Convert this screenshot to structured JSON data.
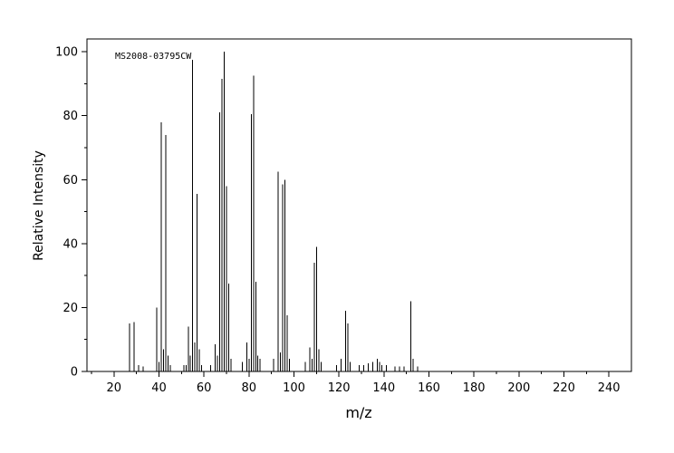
{
  "colors": {
    "background": "#ffffff",
    "axis": "#000000",
    "peak": "#000000",
    "text": "#000000"
  },
  "chart_data": {
    "type": "bar",
    "subtype": "mass-spectrum-stick-plot",
    "title": "",
    "annotation": "MS2008-03795CW",
    "xlabel": "m/z",
    "ylabel": "Relative Intensity",
    "xlim": [
      8,
      250
    ],
    "ylim": [
      0,
      104
    ],
    "x_major_ticks": [
      20,
      40,
      60,
      80,
      100,
      120,
      140,
      160,
      180,
      200,
      220,
      240
    ],
    "x_minor_step": 10,
    "y_major_ticks": [
      0,
      20,
      40,
      60,
      80,
      100
    ],
    "y_minor_step": 10,
    "grid": false,
    "legend": "none",
    "peaks": [
      [
        27,
        15
      ],
      [
        29,
        15.5
      ],
      [
        31,
        2
      ],
      [
        33,
        1.5
      ],
      [
        39,
        20
      ],
      [
        40,
        3
      ],
      [
        41,
        78
      ],
      [
        42,
        7
      ],
      [
        43,
        74
      ],
      [
        44,
        5
      ],
      [
        45,
        2
      ],
      [
        51,
        2
      ],
      [
        52,
        2
      ],
      [
        53,
        14
      ],
      [
        54,
        5
      ],
      [
        55,
        97.5
      ],
      [
        56,
        9
      ],
      [
        57,
        55.5
      ],
      [
        58,
        7
      ],
      [
        59,
        2
      ],
      [
        63,
        2
      ],
      [
        65,
        8.5
      ],
      [
        66,
        5
      ],
      [
        67,
        81
      ],
      [
        68,
        91.5
      ],
      [
        69,
        100
      ],
      [
        70,
        58
      ],
      [
        71,
        27.5
      ],
      [
        72,
        4
      ],
      [
        77,
        3
      ],
      [
        79,
        9
      ],
      [
        80,
        4
      ],
      [
        81,
        80.5
      ],
      [
        82,
        92.5
      ],
      [
        83,
        28
      ],
      [
        84,
        5
      ],
      [
        85,
        4
      ],
      [
        91,
        4
      ],
      [
        93,
        62.5
      ],
      [
        94,
        6
      ],
      [
        95,
        58.5
      ],
      [
        96,
        60
      ],
      [
        97,
        17.5
      ],
      [
        98,
        4
      ],
      [
        105,
        3
      ],
      [
        107,
        7.5
      ],
      [
        108,
        4
      ],
      [
        109,
        34
      ],
      [
        110,
        39
      ],
      [
        111,
        7
      ],
      [
        112,
        3
      ],
      [
        119,
        2
      ],
      [
        121,
        4
      ],
      [
        123,
        19
      ],
      [
        124,
        15
      ],
      [
        125,
        3
      ],
      [
        129,
        2
      ],
      [
        131,
        2
      ],
      [
        133,
        2.5
      ],
      [
        135,
        3
      ],
      [
        137,
        4
      ],
      [
        138,
        3
      ],
      [
        139,
        2
      ],
      [
        141,
        2
      ],
      [
        145,
        1.5
      ],
      [
        147,
        1.5
      ],
      [
        149,
        1.5
      ],
      [
        152,
        22
      ],
      [
        153,
        4
      ],
      [
        155,
        1.5
      ]
    ]
  }
}
